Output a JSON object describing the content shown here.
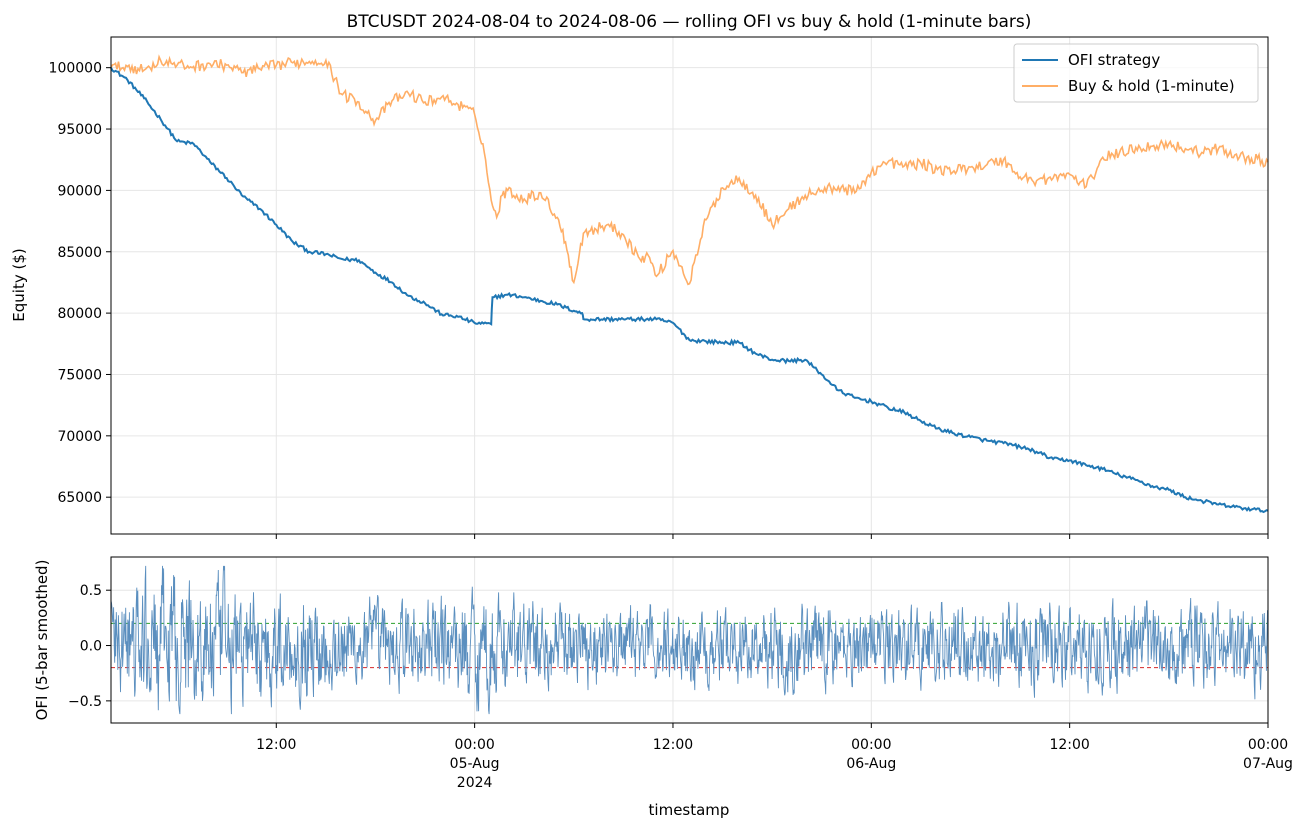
{
  "figure": {
    "title": "BTCUSDT 2024-08-04 to 2024-08-06 — rolling OFI vs buy & hold (1-minute bars)",
    "xlabel": "timestamp"
  },
  "chart_data": [
    {
      "type": "line",
      "title": "BTCUSDT 2024-08-04 to 2024-08-06 — rolling OFI vs buy & hold (1-minute bars)",
      "xlabel": "",
      "ylabel": "Equity ($)",
      "xlim": [
        "2024-08-04 02:00",
        "2024-08-07 00:00"
      ],
      "ylim": [
        62000,
        102500
      ],
      "yticks": [
        65000,
        70000,
        75000,
        80000,
        85000,
        90000,
        95000,
        100000
      ],
      "grid": true,
      "legend": "top-right",
      "series": [
        {
          "name": "OFI strategy",
          "color": "#1f77b4",
          "x": [
            "2024-08-04 02:00",
            "2024-08-04 03:00",
            "2024-08-04 04:00",
            "2024-08-04 05:00",
            "2024-08-04 06:00",
            "2024-08-04 07:00",
            "2024-08-04 08:00",
            "2024-08-04 09:00",
            "2024-08-04 10:00",
            "2024-08-04 11:00",
            "2024-08-04 12:00",
            "2024-08-04 13:00",
            "2024-08-04 14:00",
            "2024-08-04 15:00",
            "2024-08-04 16:00",
            "2024-08-04 17:00",
            "2024-08-04 18:00",
            "2024-08-04 19:00",
            "2024-08-04 20:00",
            "2024-08-04 21:00",
            "2024-08-04 22:00",
            "2024-08-04 23:00",
            "2024-08-05 00:00",
            "2024-08-05 01:00",
            "2024-08-05 01:05",
            "2024-08-05 02:00",
            "2024-08-05 03:00",
            "2024-08-05 04:00",
            "2024-08-05 05:00",
            "2024-08-05 06:00",
            "2024-08-05 06:30",
            "2024-08-05 06:35",
            "2024-08-05 09:00",
            "2024-08-05 11:00",
            "2024-08-05 12:00",
            "2024-08-05 13:00",
            "2024-08-05 14:00",
            "2024-08-05 15:00",
            "2024-08-05 16:00",
            "2024-08-05 17:00",
            "2024-08-05 18:00",
            "2024-08-05 19:00",
            "2024-08-05 20:00",
            "2024-08-05 21:00",
            "2024-08-05 22:00",
            "2024-08-05 23:00",
            "2024-08-06 00:00",
            "2024-08-06 01:00",
            "2024-08-06 02:00",
            "2024-08-06 03:00",
            "2024-08-06 04:00",
            "2024-08-06 05:00",
            "2024-08-06 06:00",
            "2024-08-06 07:00",
            "2024-08-06 08:00",
            "2024-08-06 09:00",
            "2024-08-06 10:00",
            "2024-08-06 11:00",
            "2024-08-06 12:00",
            "2024-08-06 13:00",
            "2024-08-06 14:00",
            "2024-08-06 15:00",
            "2024-08-06 16:00",
            "2024-08-06 17:00",
            "2024-08-06 18:00",
            "2024-08-06 19:00",
            "2024-08-06 20:00",
            "2024-08-06 21:00",
            "2024-08-06 22:00",
            "2024-08-06 23:00",
            "2024-08-07 00:00"
          ],
          "values": [
            100000,
            99000,
            97500,
            95800,
            94000,
            93800,
            92300,
            91000,
            89500,
            88500,
            87200,
            85800,
            85000,
            84800,
            84400,
            84300,
            83300,
            82500,
            81400,
            80800,
            79900,
            79700,
            79200,
            79100,
            81300,
            81500,
            81300,
            81000,
            80700,
            80200,
            80000,
            79500,
            79500,
            79500,
            79200,
            77800,
            77700,
            77600,
            77600,
            76700,
            76200,
            76100,
            76200,
            75000,
            73700,
            73100,
            72800,
            72300,
            71900,
            71200,
            70600,
            70200,
            69900,
            69600,
            69400,
            69100,
            68700,
            68100,
            68000,
            67600,
            67300,
            66800,
            66400,
            65900,
            65600,
            65000,
            64700,
            64400,
            64200,
            64000,
            63900
          ]
        },
        {
          "name": "Buy & hold (1-minute)",
          "color": "#ffae66",
          "x": [
            "2024-08-04 02:00",
            "2024-08-04 03:00",
            "2024-08-04 04:00",
            "2024-08-04 05:00",
            "2024-08-04 06:00",
            "2024-08-04 07:00",
            "2024-08-04 08:00",
            "2024-08-04 09:00",
            "2024-08-04 10:00",
            "2024-08-04 11:00",
            "2024-08-04 12:00",
            "2024-08-04 13:00",
            "2024-08-04 14:00",
            "2024-08-04 15:00",
            "2024-08-04 16:00",
            "2024-08-04 17:00",
            "2024-08-04 17:30",
            "2024-08-04 18:00",
            "2024-08-04 19:00",
            "2024-08-04 20:00",
            "2024-08-04 21:00",
            "2024-08-04 22:00",
            "2024-08-04 23:00",
            "2024-08-05 00:00",
            "2024-08-05 00:30",
            "2024-08-05 01:00",
            "2024-08-05 01:20",
            "2024-08-05 01:40",
            "2024-08-05 02:00",
            "2024-08-05 03:00",
            "2024-08-05 04:00",
            "2024-08-05 05:00",
            "2024-08-05 05:30",
            "2024-08-05 06:00",
            "2024-08-05 06:20",
            "2024-08-05 06:35",
            "2024-08-05 07:00",
            "2024-08-05 08:00",
            "2024-08-05 09:00",
            "2024-08-05 10:00",
            "2024-08-05 10:30",
            "2024-08-05 11:00",
            "2024-08-05 12:00",
            "2024-08-05 13:00",
            "2024-08-05 13:40",
            "2024-08-05 14:00",
            "2024-08-05 15:00",
            "2024-08-05 16:00",
            "2024-08-05 17:00",
            "2024-08-05 18:00",
            "2024-08-05 19:00",
            "2024-08-05 20:00",
            "2024-08-05 21:00",
            "2024-08-05 22:00",
            "2024-08-05 23:00",
            "2024-08-06 00:00",
            "2024-08-06 01:00",
            "2024-08-06 02:00",
            "2024-08-06 03:00",
            "2024-08-06 04:00",
            "2024-08-06 05:00",
            "2024-08-06 06:00",
            "2024-08-06 07:00",
            "2024-08-06 08:00",
            "2024-08-06 09:00",
            "2024-08-06 10:00",
            "2024-08-06 11:00",
            "2024-08-06 12:00",
            "2024-08-06 13:00",
            "2024-08-06 13:40",
            "2024-08-06 14:00",
            "2024-08-06 15:00",
            "2024-08-06 16:00",
            "2024-08-06 17:00",
            "2024-08-06 18:00",
            "2024-08-06 19:00",
            "2024-08-06 20:00",
            "2024-08-06 21:00",
            "2024-08-06 22:00",
            "2024-08-06 23:00",
            "2024-08-07 00:00"
          ],
          "values": [
            100000,
            100100,
            99800,
            100600,
            100200,
            100100,
            100300,
            100200,
            99600,
            99900,
            100200,
            100400,
            100500,
            100600,
            97800,
            97200,
            96300,
            95700,
            97300,
            97900,
            97200,
            97600,
            97000,
            96200,
            93800,
            89200,
            87800,
            89600,
            90000,
            89300,
            89800,
            87800,
            85800,
            82500,
            84800,
            86500,
            86700,
            87200,
            86400,
            84400,
            84700,
            83000,
            85100,
            82400,
            86000,
            87600,
            90200,
            91000,
            89600,
            87200,
            88500,
            89600,
            90000,
            90300,
            89800,
            91500,
            92300,
            92000,
            92200,
            91700,
            91600,
            91900,
            92100,
            92500,
            91100,
            90800,
            91000,
            91300,
            90300,
            91800,
            92700,
            93000,
            93500,
            93600,
            93800,
            93400,
            93100,
            93400,
            92900,
            92600,
            92300
          ]
        }
      ]
    },
    {
      "type": "line",
      "title": "",
      "xlabel": "timestamp",
      "ylabel": "OFI (5-bar smoothed)",
      "xlim": [
        "2024-08-04 02:00",
        "2024-08-07 00:00"
      ],
      "ylim": [
        -0.7,
        0.8
      ],
      "yticks": [
        -0.5,
        0.0,
        0.5
      ],
      "xticks": [
        "12:00",
        "00:00\n05-Aug\n2024",
        "12:00",
        "00:00\n06-Aug",
        "12:00",
        "00:00\n07-Aug"
      ],
      "grid": true,
      "thresholds": [
        {
          "value": 0.2,
          "color": "#2ca02c"
        },
        {
          "value": -0.2,
          "color": "#d62728"
        }
      ],
      "series": [
        {
          "color": "#5b8fbf",
          "x_start": "2024-08-04 02:00",
          "x_end": "2024-08-07 00:00",
          "envelope_by_hour": [
            0.45,
            0.5,
            0.55,
            0.6,
            0.6,
            0.55,
            0.55,
            0.5,
            0.45,
            0.45,
            0.4,
            0.42,
            0.4,
            0.38,
            0.36,
            0.36,
            0.35,
            0.35,
            0.36,
            0.4,
            0.42,
            0.45,
            0.5,
            0.4,
            0.38,
            0.35,
            0.33,
            0.33,
            0.32,
            0.32,
            0.3,
            0.3,
            0.3,
            0.3,
            0.3,
            0.32,
            0.3,
            0.3,
            0.3,
            0.32,
            0.33,
            0.34,
            0.33,
            0.32,
            0.32,
            0.32,
            0.32,
            0.33,
            0.33,
            0.33,
            0.34,
            0.34,
            0.33,
            0.33,
            0.34,
            0.34,
            0.33,
            0.33,
            0.34,
            0.34,
            0.35,
            0.35,
            0.34,
            0.34,
            0.35,
            0.35,
            0.36,
            0.36,
            0.36,
            0.36
          ],
          "summary": {
            "min": -0.62,
            "max": 0.72
          }
        }
      ]
    }
  ],
  "axes": {
    "top": {
      "ytick_labels": [
        "65000",
        "70000",
        "75000",
        "80000",
        "85000",
        "90000",
        "95000",
        "100000"
      ]
    },
    "bottom": {
      "ytick_labels": [
        "−0.5",
        "0.0",
        "0.5"
      ],
      "xtick_labels": [
        {
          "line1": "12:00",
          "line2": "",
          "line3": ""
        },
        {
          "line1": "00:00",
          "line2": "05-Aug",
          "line3": "2024"
        },
        {
          "line1": "12:00",
          "line2": "",
          "line3": ""
        },
        {
          "line1": "00:00",
          "line2": "06-Aug",
          "line3": ""
        },
        {
          "line1": "12:00",
          "line2": "",
          "line3": ""
        },
        {
          "line1": "00:00",
          "line2": "07-Aug",
          "line3": ""
        }
      ]
    }
  },
  "legend": {
    "items": [
      "OFI strategy",
      "Buy & hold (1-minute)"
    ]
  }
}
